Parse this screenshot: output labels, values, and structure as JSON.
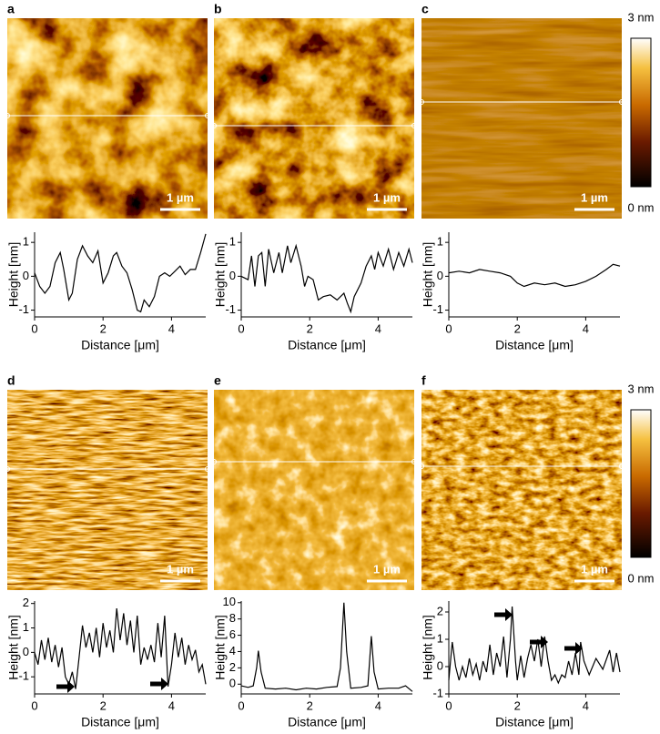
{
  "chart_data": [
    {
      "type": "line",
      "panel": "a",
      "scale_bar": "1 µm",
      "x_label": "Distance [μm]",
      "y_label": "Height [nm]",
      "color": "#000000",
      "xlim": [
        0,
        5
      ],
      "ylim": [
        -1.2,
        1.3
      ],
      "xticks": [
        0,
        2,
        4
      ],
      "yticks": [
        -1,
        0,
        1
      ],
      "x": [
        0,
        0.15,
        0.3,
        0.45,
        0.6,
        0.75,
        0.85,
        1.0,
        1.1,
        1.25,
        1.4,
        1.55,
        1.7,
        1.85,
        2.0,
        2.15,
        2.3,
        2.4,
        2.55,
        2.7,
        2.85,
        3.0,
        3.1,
        3.2,
        3.35,
        3.5,
        3.65,
        3.8,
        3.95,
        4.1,
        4.25,
        4.4,
        4.55,
        4.7,
        4.85,
        5.0
      ],
      "values": [
        0.1,
        -0.3,
        -0.5,
        -0.3,
        0.4,
        0.7,
        0.2,
        -0.7,
        -0.5,
        0.5,
        0.9,
        0.6,
        0.4,
        0.75,
        -0.2,
        0.1,
        0.6,
        0.7,
        0.3,
        0.1,
        -0.4,
        -1.0,
        -1.05,
        -0.7,
        -0.9,
        -0.6,
        0.0,
        0.1,
        0.0,
        0.15,
        0.3,
        0.05,
        0.2,
        0.2,
        0.7,
        1.25
      ]
    },
    {
      "type": "line",
      "panel": "b",
      "scale_bar": "1 µm",
      "x_label": "Distance [μm]",
      "y_label": "Height [nm]",
      "color": "#000000",
      "xlim": [
        0,
        5
      ],
      "ylim": [
        -1.2,
        1.3
      ],
      "xticks": [
        0,
        2,
        4
      ],
      "yticks": [
        -1,
        0,
        1
      ],
      "x": [
        0,
        0.2,
        0.3,
        0.4,
        0.5,
        0.6,
        0.7,
        0.8,
        0.95,
        1.1,
        1.2,
        1.35,
        1.45,
        1.6,
        1.75,
        1.85,
        1.95,
        2.1,
        2.25,
        2.4,
        2.6,
        2.8,
        3.0,
        3.1,
        3.2,
        3.3,
        3.5,
        3.65,
        3.8,
        3.9,
        4.0,
        4.15,
        4.3,
        4.45,
        4.6,
        4.75,
        4.9,
        5.0
      ],
      "values": [
        0,
        -0.1,
        0.6,
        -0.3,
        0.6,
        0.7,
        -0.3,
        0.8,
        0.1,
        0.7,
        0.1,
        0.9,
        0.4,
        0.9,
        0.3,
        -0.3,
        0.0,
        -0.1,
        -0.7,
        -0.6,
        -0.55,
        -0.7,
        -0.5,
        -0.8,
        -1.05,
        -0.6,
        -0.2,
        0.3,
        0.6,
        0.2,
        0.7,
        0.3,
        0.8,
        0.2,
        0.7,
        0.3,
        0.8,
        0.4
      ]
    },
    {
      "type": "line",
      "panel": "c",
      "scale_bar": "1 µm",
      "x_label": "Distance [μm]",
      "y_label": "Height [nm]",
      "color": "#000000",
      "xlim": [
        0,
        5
      ],
      "ylim": [
        -1.2,
        1.3
      ],
      "xticks": [
        0,
        2,
        4
      ],
      "yticks": [
        -1,
        0,
        1
      ],
      "x": [
        0,
        0.3,
        0.6,
        0.9,
        1.2,
        1.5,
        1.8,
        2.0,
        2.2,
        2.5,
        2.8,
        3.1,
        3.4,
        3.7,
        4.0,
        4.3,
        4.6,
        4.8,
        5.0
      ],
      "values": [
        0.1,
        0.15,
        0.1,
        0.2,
        0.15,
        0.1,
        0.0,
        -0.2,
        -0.3,
        -0.2,
        -0.25,
        -0.2,
        -0.3,
        -0.25,
        -0.15,
        0.0,
        0.2,
        0.35,
        0.3
      ]
    },
    {
      "type": "line",
      "panel": "d",
      "scale_bar": "1 µm",
      "x_label": "Distance [μm]",
      "y_label": "Height [nm]",
      "color": "#000000",
      "xlim": [
        0,
        5
      ],
      "ylim": [
        -1.7,
        2.1
      ],
      "xticks": [
        0,
        2,
        4
      ],
      "yticks": [
        -1,
        0,
        1,
        2
      ],
      "x": [
        0,
        0.1,
        0.2,
        0.3,
        0.4,
        0.5,
        0.6,
        0.7,
        0.8,
        0.9,
        1.0,
        1.1,
        1.2,
        1.3,
        1.4,
        1.5,
        1.6,
        1.7,
        1.8,
        1.9,
        2.0,
        2.1,
        2.2,
        2.3,
        2.4,
        2.5,
        2.6,
        2.7,
        2.8,
        2.9,
        3.0,
        3.1,
        3.2,
        3.3,
        3.4,
        3.5,
        3.6,
        3.7,
        3.8,
        3.9,
        4.0,
        4.1,
        4.2,
        4.3,
        4.4,
        4.5,
        4.6,
        4.7,
        4.8,
        4.9,
        5.0
      ],
      "values": [
        0,
        -0.5,
        0.5,
        -0.3,
        0.6,
        -0.4,
        0.3,
        -0.6,
        0.2,
        -1.0,
        -1.3,
        -0.8,
        -1.5,
        -0.2,
        1.1,
        0.2,
        0.8,
        0.0,
        1.0,
        -0.2,
        1.2,
        0.2,
        0.9,
        0.0,
        1.8,
        0.5,
        1.6,
        0.3,
        1.3,
        0.0,
        1.5,
        -0.5,
        0.2,
        -0.3,
        0.3,
        -0.4,
        1.2,
        -0.2,
        1.5,
        -1.4,
        -0.5,
        0.8,
        -0.2,
        0.6,
        -0.5,
        0.3,
        -0.3,
        0.1,
        -0.8,
        -0.5,
        -1.3
      ]
    },
    {
      "type": "line",
      "panel": "e",
      "scale_bar": "1 µm",
      "x_label": "Distance [μm]",
      "y_label": "Height [nm]",
      "color": "#000000",
      "xlim": [
        0,
        5
      ],
      "ylim": [
        -1.2,
        10.2
      ],
      "xticks": [
        0,
        2,
        4
      ],
      "yticks": [
        0,
        2,
        4,
        6,
        8,
        10
      ],
      "x": [
        0,
        0.2,
        0.35,
        0.45,
        0.5,
        0.58,
        0.7,
        1.0,
        1.3,
        1.6,
        1.9,
        2.2,
        2.5,
        2.8,
        2.9,
        3.0,
        3.08,
        3.2,
        3.5,
        3.7,
        3.8,
        3.88,
        4.0,
        4.3,
        4.6,
        4.8,
        5.0
      ],
      "values": [
        -0.2,
        -0.4,
        -0.2,
        2.0,
        4.1,
        1.5,
        -0.5,
        -0.6,
        -0.5,
        -0.7,
        -0.5,
        -0.6,
        -0.4,
        -0.3,
        2.0,
        10,
        4.0,
        -0.5,
        -0.4,
        -0.2,
        5.9,
        1.5,
        -0.6,
        -0.5,
        -0.5,
        -0.2,
        -0.9
      ]
    },
    {
      "type": "line",
      "panel": "f",
      "scale_bar": "1 µm",
      "x_label": "Distance [μm]",
      "y_label": "Height [nm]",
      "color": "#000000",
      "xlim": [
        0,
        5
      ],
      "ylim": [
        -1,
        2.4
      ],
      "xticks": [
        0,
        2,
        4
      ],
      "yticks": [
        -1,
        0,
        1,
        2
      ],
      "x": [
        0,
        0.1,
        0.2,
        0.3,
        0.4,
        0.5,
        0.6,
        0.7,
        0.8,
        0.9,
        1.0,
        1.1,
        1.2,
        1.3,
        1.4,
        1.5,
        1.6,
        1.7,
        1.8,
        1.85,
        1.95,
        2.0,
        2.1,
        2.2,
        2.3,
        2.4,
        2.5,
        2.6,
        2.7,
        2.8,
        2.9,
        3.0,
        3.1,
        3.2,
        3.3,
        3.4,
        3.5,
        3.6,
        3.7,
        3.8,
        3.85,
        3.95,
        4.1,
        4.3,
        4.5,
        4.7,
        4.8,
        4.9,
        5.0
      ],
      "values": [
        -0.5,
        0.9,
        0.0,
        -0.5,
        0.0,
        -0.4,
        0.3,
        -0.3,
        0.1,
        -0.5,
        0.2,
        -0.2,
        0.8,
        -0.3,
        0.5,
        0.0,
        1.1,
        -0.4,
        1.0,
        2.2,
        0.2,
        -0.5,
        0.4,
        -0.4,
        0.3,
        0.8,
        0.2,
        1.0,
        0.0,
        1.1,
        0.2,
        -0.5,
        -0.3,
        -0.6,
        -0.3,
        -0.4,
        0.2,
        -0.3,
        0.5,
        -0.3,
        0.9,
        0.2,
        -0.3,
        0.3,
        -0.1,
        0.6,
        -0.2,
        0.5,
        -0.2
      ]
    }
  ],
  "colorbars": [
    {
      "max": "3 nm",
      "min": "0 nm"
    },
    {
      "max": "3 nm",
      "min": "0 nm"
    }
  ]
}
